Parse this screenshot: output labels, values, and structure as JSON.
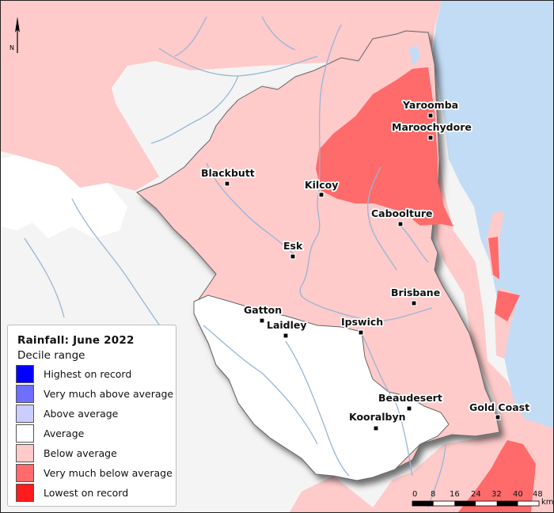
{
  "legend": {
    "title": "Rainfall: June 2022",
    "subtitle": "Decile range",
    "items": [
      {
        "label": "Highest on record",
        "color": "#0000ff"
      },
      {
        "label": "Very much above average",
        "color": "#6e6eff"
      },
      {
        "label": "Above average",
        "color": "#cccdff"
      },
      {
        "label": "Average",
        "color": "#ffffff"
      },
      {
        "label": "Below average",
        "color": "#fecaca"
      },
      {
        "label": "Very much below average",
        "color": "#ff6a6a"
      },
      {
        "label": "Lowest on record",
        "color": "#ff1c1c"
      }
    ]
  },
  "north_arrow": {
    "label": "N"
  },
  "places": {
    "yaroomba": "Yaroomba",
    "maroochydore": "Maroochydore",
    "blackbutt": "Blackbutt",
    "kilcoy": "Kilcoy",
    "caboolture": "Caboolture",
    "esk": "Esk",
    "brisbane": "Brisbane",
    "gatton": "Gatton",
    "laidley": "Laidley",
    "ipswich": "Ipswich",
    "beaudesert": "Beaudesert",
    "gold_coast": "Gold Coast",
    "kooralbyn": "Kooralbyn"
  },
  "scale_bar": {
    "ticks": [
      "0",
      "8",
      "16",
      "24",
      "32",
      "40",
      "48"
    ],
    "unit": "km"
  },
  "colors": {
    "ocean": "#c3dcf5",
    "land": "#f4f4f4",
    "rivers": "#98b6d6",
    "below_average": "#fecaca",
    "very_much_below_average": "#ff6a6a",
    "lowest_on_record": "#ff1c1c",
    "average": "#ffffff"
  }
}
